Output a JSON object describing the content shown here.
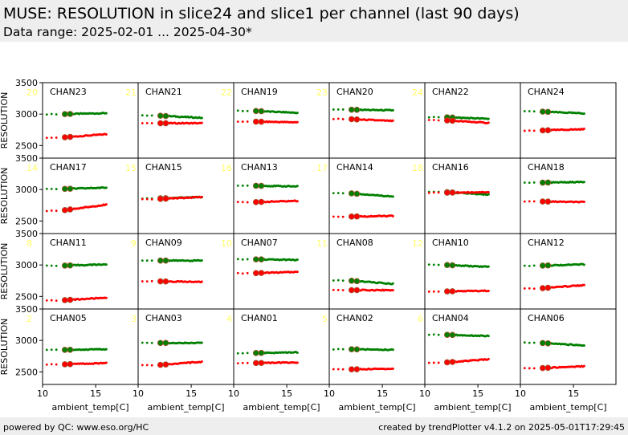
{
  "header": {
    "title": "MUSE: RESOLUTION in slice24 and slice1 per channel (last 90 days)",
    "subtitle": "Data range: 2025-02-01 ... 2025-04-30*"
  },
  "footer": {
    "left": "powered by QC: www.eso.org/HC",
    "right": "created by trendPlotter v4.1.2 on 2025-05-01T17:29:45"
  },
  "colors": {
    "slice24": "#008000",
    "slice1": "#ff0000",
    "panel_number": "#ffff66",
    "header_bg": "#eeeeee"
  },
  "chart_data": {
    "type": "scatter",
    "xlabel": "ambient_temp[C]",
    "ylabel": "RESOLUTION",
    "xlim": [
      10,
      19
    ],
    "ylim": [
      2300,
      3500
    ],
    "xticks": [
      "10",
      "15"
    ],
    "yticks": [
      "2500",
      "3000",
      "3500"
    ],
    "x_range": [
      12.0,
      16.0
    ],
    "grid": false,
    "panels": [
      {
        "channel": "CHAN23",
        "left_num": "20",
        "right_num": "21",
        "green": [
          3000,
          3015
        ],
        "red": [
          2630,
          2680
        ]
      },
      {
        "channel": "CHAN21",
        "left_num": "",
        "right_num": "22",
        "green": [
          2975,
          2940
        ],
        "red": [
          2855,
          2855
        ]
      },
      {
        "channel": "CHAN19",
        "left_num": "",
        "right_num": "23",
        "green": [
          3050,
          3020
        ],
        "red": [
          2880,
          2870
        ]
      },
      {
        "channel": "CHAN20",
        "left_num": "",
        "right_num": "24",
        "green": [
          3070,
          3060
        ],
        "red": [
          2920,
          2890
        ]
      },
      {
        "channel": "CHAN22",
        "left_num": "",
        "right_num": "",
        "green": [
          2950,
          2925
        ],
        "red": [
          2900,
          2860
        ]
      },
      {
        "channel": "CHAN24",
        "left_num": "",
        "right_num": "",
        "green": [
          3040,
          3010
        ],
        "red": [
          2740,
          2760
        ]
      },
      {
        "channel": "CHAN17",
        "left_num": "14",
        "right_num": "15",
        "green": [
          3010,
          3030
        ],
        "red": [
          2670,
          2760
        ]
      },
      {
        "channel": "CHAN15",
        "left_num": "",
        "right_num": "16",
        "green": [
          2860,
          2880
        ],
        "red": [
          2850,
          2880
        ]
      },
      {
        "channel": "CHAN13",
        "left_num": "",
        "right_num": "17",
        "green": [
          3060,
          3050
        ],
        "red": [
          2800,
          2820
        ]
      },
      {
        "channel": "CHAN14",
        "left_num": "",
        "right_num": "18",
        "green": [
          2940,
          2890
        ],
        "red": [
          2570,
          2580
        ]
      },
      {
        "channel": "CHAN16",
        "left_num": "",
        "right_num": "",
        "green": [
          2960,
          2920
        ],
        "red": [
          2950,
          2960
        ]
      },
      {
        "channel": "CHAN18",
        "left_num": "",
        "right_num": "",
        "green": [
          3110,
          3120
        ],
        "red": [
          2810,
          2800
        ]
      },
      {
        "channel": "CHAN11",
        "left_num": "8",
        "right_num": "9",
        "green": [
          2990,
          3010
        ],
        "red": [
          2440,
          2480
        ]
      },
      {
        "channel": "CHAN09",
        "left_num": "",
        "right_num": "10",
        "green": [
          3070,
          3070
        ],
        "red": [
          2740,
          2730
        ]
      },
      {
        "channel": "CHAN07",
        "left_num": "",
        "right_num": "11",
        "green": [
          3090,
          3080
        ],
        "red": [
          2870,
          2890
        ]
      },
      {
        "channel": "CHAN08",
        "left_num": "",
        "right_num": "12",
        "green": [
          2750,
          2700
        ],
        "red": [
          2600,
          2600
        ]
      },
      {
        "channel": "CHAN10",
        "left_num": "",
        "right_num": "",
        "green": [
          3000,
          2970
        ],
        "red": [
          2580,
          2590
        ]
      },
      {
        "channel": "CHAN12",
        "left_num": "",
        "right_num": "",
        "green": [
          2990,
          3010
        ],
        "red": [
          2630,
          2680
        ]
      },
      {
        "channel": "CHAN05",
        "left_num": "2",
        "right_num": "3",
        "green": [
          2850,
          2860
        ],
        "red": [
          2620,
          2640
        ]
      },
      {
        "channel": "CHAN03",
        "left_num": "",
        "right_num": "4",
        "green": [
          2960,
          2960
        ],
        "red": [
          2610,
          2660
        ]
      },
      {
        "channel": "CHAN01",
        "left_num": "",
        "right_num": "5",
        "green": [
          2800,
          2810
        ],
        "red": [
          2640,
          2650
        ]
      },
      {
        "channel": "CHAN02",
        "left_num": "",
        "right_num": "6",
        "green": [
          2860,
          2850
        ],
        "red": [
          2540,
          2550
        ]
      },
      {
        "channel": "CHAN04",
        "left_num": "",
        "right_num": "",
        "green": [
          3090,
          3070
        ],
        "red": [
          2650,
          2700
        ]
      },
      {
        "channel": "CHAN06",
        "left_num": "",
        "right_num": "",
        "green": [
          2960,
          2920
        ],
        "red": [
          2560,
          2590
        ]
      }
    ]
  }
}
